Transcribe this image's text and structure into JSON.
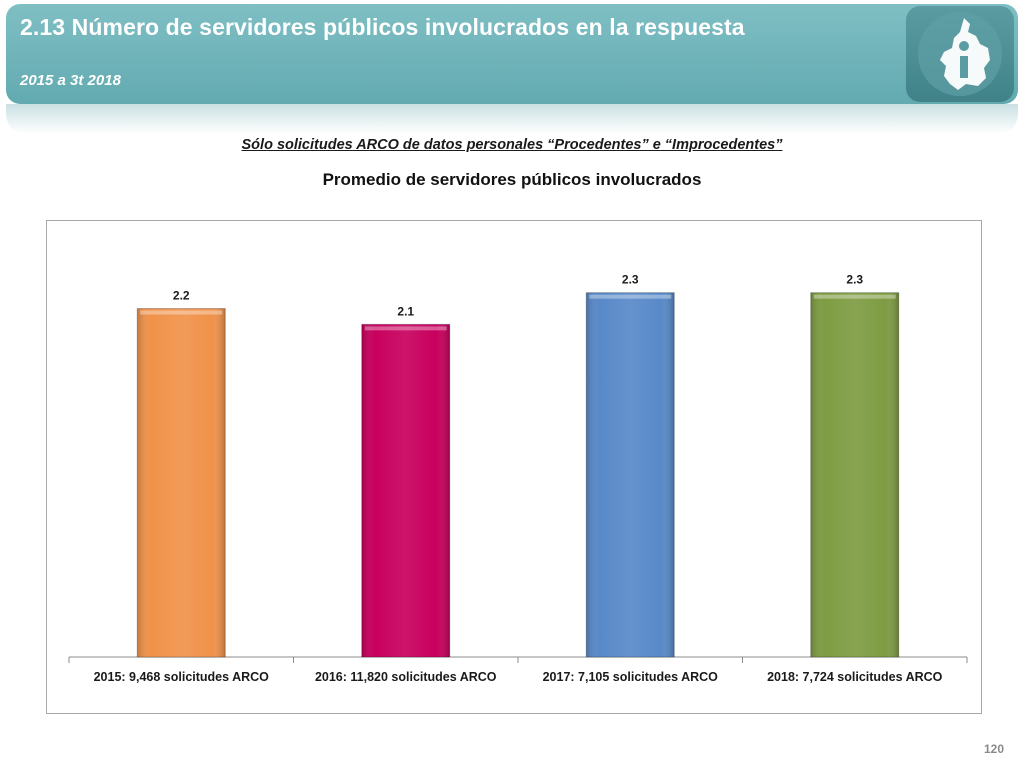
{
  "header": {
    "title": "2.13 Número de servidores públicos involucrados en la respuesta",
    "subtitle": "2015 a 3t 2018",
    "logo_icon": "cdmx-map-info-icon",
    "band_color": "#6db3b8"
  },
  "caption": "Sólo solicitudes ARCO de datos personales “Procedentes” e “Improcedentes”",
  "chart_heading": "Promedio de servidores públicos involucrados",
  "chart_data": {
    "type": "bar",
    "categories": [
      "2015: 9,468 solicitudes ARCO",
      "2016: 11,820 solicitudes ARCO",
      "2017: 7,105 solicitudes ARCO",
      "2018: 7,724 solicitudes ARCO"
    ],
    "values": [
      2.2,
      2.1,
      2.3,
      2.3
    ],
    "data_labels": [
      "2.2",
      "2.1",
      "2.3",
      "2.3"
    ],
    "colors": [
      "#f0924a",
      "#c8005e",
      "#5889c8",
      "#7e9c43"
    ],
    "ylim": [
      0,
      2.5
    ],
    "grid": false,
    "legend": "none"
  },
  "page_number": "120"
}
